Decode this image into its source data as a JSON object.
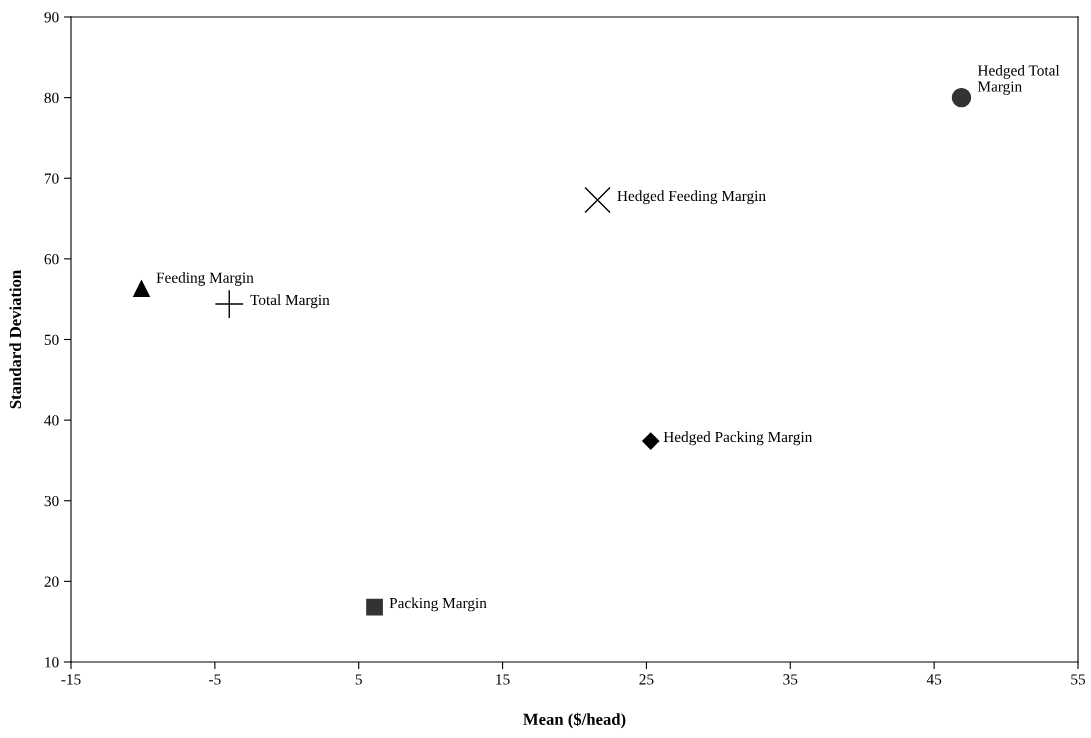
{
  "chart_data": {
    "type": "scatter",
    "xlabel": "Mean ($/head)",
    "ylabel": "Standard Deviation",
    "xlim": [
      -15,
      55
    ],
    "xticks": [
      -15,
      -5,
      5,
      15,
      25,
      35,
      45,
      55
    ],
    "ylim": [
      10,
      90
    ],
    "yticks": [
      10,
      20,
      30,
      40,
      50,
      60,
      70,
      80,
      90
    ],
    "grid": false,
    "legend": false,
    "series": [
      {
        "name": "Feeding Margin",
        "color": "#000000",
        "marker": "triangle",
        "x": [
          -10.1
        ],
        "values": [
          56.3
        ]
      },
      {
        "name": "Total Margin",
        "color": "#000000",
        "x": [
          -4.0
        ],
        "values": [
          54.4
        ]
      },
      {
        "name": "Packing Margin",
        "color": "#333333",
        "marker": "square",
        "x": [
          6.1
        ],
        "values": [
          16.8
        ]
      },
      {
        "name": "Hedged Feeding Margin",
        "color": "#000000",
        "marker": "cross",
        "x": [
          21.6
        ],
        "values": [
          67.3
        ]
      },
      {
        "name": "Hedged Packing Margin",
        "color": "#000000",
        "marker": "diamond",
        "x": [
          25.3
        ],
        "values": [
          37.4
        ]
      },
      {
        "name": "Hedged Total Margin",
        "color": "#333333",
        "marker": "circle",
        "x": [
          46.9
        ],
        "values": [
          80.0
        ]
      }
    ]
  }
}
